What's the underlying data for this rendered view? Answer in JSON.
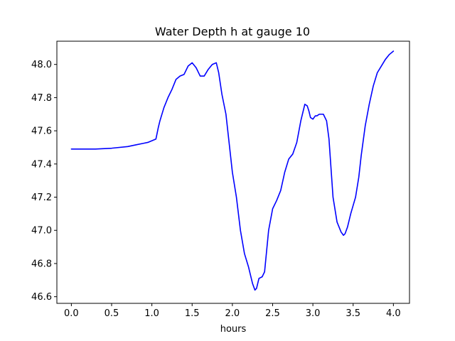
{
  "chart_data": {
    "type": "line",
    "title": "Water Depth h at gauge 10",
    "xlabel": "hours",
    "ylabel": "",
    "xlim": [
      -0.18,
      4.2
    ],
    "ylim": [
      46.56,
      48.14
    ],
    "xticks": [
      0.0,
      0.5,
      1.0,
      1.5,
      2.0,
      2.5,
      3.0,
      3.5,
      4.0
    ],
    "xtick_labels": [
      "0.0",
      "0.5",
      "1.0",
      "1.5",
      "2.0",
      "2.5",
      "3.0",
      "3.5",
      "4.0"
    ],
    "yticks": [
      46.6,
      46.8,
      47.0,
      47.2,
      47.4,
      47.6,
      47.8,
      48.0
    ],
    "ytick_labels": [
      "46.6",
      "46.8",
      "47.0",
      "47.2",
      "47.4",
      "47.6",
      "47.8",
      "48.0"
    ],
    "grid": false,
    "legend": "none",
    "series": [
      {
        "color": "#0000ff",
        "x": [
          0.0,
          0.3,
          0.5,
          0.7,
          0.8,
          0.9,
          0.95,
          1.0,
          1.05,
          1.08,
          1.1,
          1.15,
          1.2,
          1.25,
          1.3,
          1.35,
          1.4,
          1.45,
          1.5,
          1.55,
          1.6,
          1.65,
          1.7,
          1.75,
          1.8,
          1.83,
          1.87,
          1.92,
          2.0,
          2.05,
          2.1,
          2.15,
          2.2,
          2.25,
          2.28,
          2.3,
          2.33,
          2.37,
          2.4,
          2.45,
          2.5,
          2.55,
          2.6,
          2.65,
          2.7,
          2.75,
          2.8,
          2.85,
          2.9,
          2.93,
          2.95,
          2.97,
          3.0,
          3.03,
          3.05,
          3.08,
          3.1,
          3.13,
          3.17,
          3.2,
          3.25,
          3.3,
          3.35,
          3.38,
          3.4,
          3.43,
          3.47,
          3.5,
          3.53,
          3.57,
          3.6,
          3.65,
          3.7,
          3.75,
          3.8,
          3.85,
          3.9,
          3.95,
          4.0
        ],
        "y": [
          47.49,
          47.49,
          47.495,
          47.505,
          47.515,
          47.525,
          47.53,
          47.54,
          47.55,
          47.62,
          47.66,
          47.74,
          47.8,
          47.85,
          47.91,
          47.93,
          47.94,
          47.99,
          48.01,
          47.98,
          47.93,
          47.93,
          47.97,
          48.0,
          48.01,
          47.95,
          47.82,
          47.7,
          47.35,
          47.2,
          47.0,
          46.86,
          46.78,
          46.68,
          46.64,
          46.65,
          46.71,
          46.72,
          46.75,
          47.0,
          47.13,
          47.18,
          47.24,
          47.35,
          47.43,
          47.46,
          47.53,
          47.66,
          47.76,
          47.75,
          47.72,
          47.68,
          47.67,
          47.69,
          47.69,
          47.7,
          47.7,
          47.7,
          47.66,
          47.55,
          47.2,
          47.05,
          46.99,
          46.97,
          46.98,
          47.02,
          47.1,
          47.15,
          47.2,
          47.32,
          47.45,
          47.63,
          47.76,
          47.87,
          47.95,
          47.99,
          48.03,
          48.06,
          48.08
        ]
      }
    ]
  }
}
